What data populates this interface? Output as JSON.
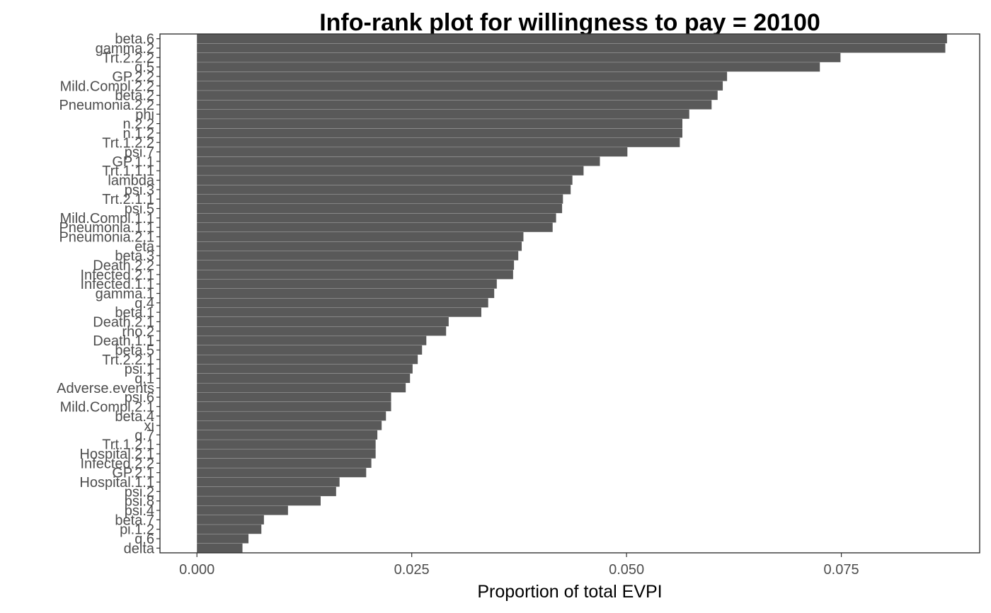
{
  "chart_data": {
    "type": "bar",
    "orientation": "horizontal",
    "title": "Info-rank plot for willingness to pay = 20100",
    "xlabel": "Proportion of total EVPI",
    "ylabel": "",
    "xlim": [
      -0.0043,
      0.0911
    ],
    "xticks": [
      0.0,
      0.025,
      0.05,
      0.075
    ],
    "xtick_labels": [
      "0.000",
      "0.025",
      "0.050",
      "0.075"
    ],
    "grid": false,
    "legend": "none",
    "bar_color": "#595959",
    "categories": [
      "beta.6",
      "gamma.2",
      "Trt.2.2.2",
      "q.5",
      "GP.2.2",
      "Mild.Compl.2.2",
      "beta.2",
      "Pneumonia.2.2",
      "phi",
      "n.2.2",
      "n.1.2",
      "Trt.1.2.2",
      "psi.7",
      "GP.1.1",
      "Trt.1.1.1",
      "lambda",
      "psi.3",
      "Trt.2.1.1",
      "psi.5",
      "Mild.Compl.1.1",
      "Pneumonia.1.1",
      "Pneumonia.2.1",
      "eta",
      "beta.3",
      "Death.2.2",
      "Infected.2.1",
      "Infected.1.1",
      "gamma.1",
      "q.4",
      "beta.1",
      "Death.2.1",
      "rho.2",
      "Death.1.1",
      "beta.5",
      "Trt.2.2.1",
      "psi.1",
      "q.1",
      "Adverse.events",
      "psi.6",
      "Mild.Compl.2.1",
      "beta.4",
      "xi",
      "q.7",
      "Trt.1.2.1",
      "Hospital.2.1",
      "Infected.2.2",
      "GP.2.1",
      "Hospital.1.1",
      "psi.2",
      "psi.8",
      "psi.4",
      "beta.7",
      "pi.1.2",
      "q.6",
      "delta"
    ],
    "values": [
      0.0873,
      0.0871,
      0.0749,
      0.0725,
      0.0617,
      0.0612,
      0.0606,
      0.0599,
      0.0573,
      0.0565,
      0.0565,
      0.0562,
      0.0501,
      0.0469,
      0.045,
      0.0437,
      0.0435,
      0.0426,
      0.0425,
      0.0418,
      0.0414,
      0.038,
      0.0378,
      0.0374,
      0.0369,
      0.0368,
      0.0349,
      0.0346,
      0.0339,
      0.0331,
      0.0293,
      0.029,
      0.0267,
      0.0262,
      0.0257,
      0.0251,
      0.0248,
      0.0243,
      0.0226,
      0.0226,
      0.022,
      0.0215,
      0.021,
      0.0208,
      0.0208,
      0.0203,
      0.0197,
      0.0166,
      0.0162,
      0.0144,
      0.0106,
      0.0078,
      0.0075,
      0.006,
      0.0053
    ]
  }
}
